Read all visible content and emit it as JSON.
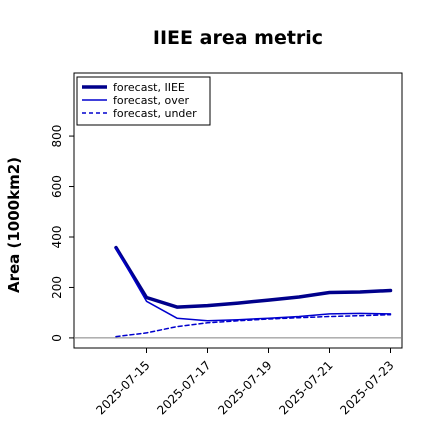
{
  "chart_data": {
    "type": "line",
    "title": "IIEE area metric",
    "xlabel": "",
    "ylabel": "Area (1000km2)",
    "x": [
      "2025-07-14",
      "2025-07-15",
      "2025-07-16",
      "2025-07-17",
      "2025-07-18",
      "2025-07-19",
      "2025-07-20",
      "2025-07-21",
      "2025-07-22",
      "2025-07-23"
    ],
    "xticks": [
      "2025-07-15",
      "2025-07-17",
      "2025-07-19",
      "2025-07-21",
      "2025-07-23"
    ],
    "xtick_colors": {
      "2025-07-15": "#228b22"
    },
    "yticks": [
      0,
      200,
      400,
      600,
      800
    ],
    "ylim": [
      -40,
      1050
    ],
    "grid": false,
    "legend_position": "top-left",
    "series": [
      {
        "name": "forecast, IIEE",
        "style": "thick-solid",
        "color": "#00008b",
        "values": [
          358,
          160,
          122,
          128,
          138,
          150,
          162,
          180,
          182,
          188
        ]
      },
      {
        "name": "forecast, over",
        "style": "solid",
        "color": "#0000cd",
        "values": [
          355,
          145,
          78,
          68,
          72,
          78,
          85,
          95,
          97,
          95
        ]
      },
      {
        "name": "forecast, under",
        "style": "dashed",
        "color": "#0000cd",
        "values": [
          5,
          20,
          45,
          60,
          68,
          75,
          80,
          85,
          88,
          92
        ]
      }
    ],
    "baseline": {
      "value": 0,
      "color": "#808080"
    }
  }
}
